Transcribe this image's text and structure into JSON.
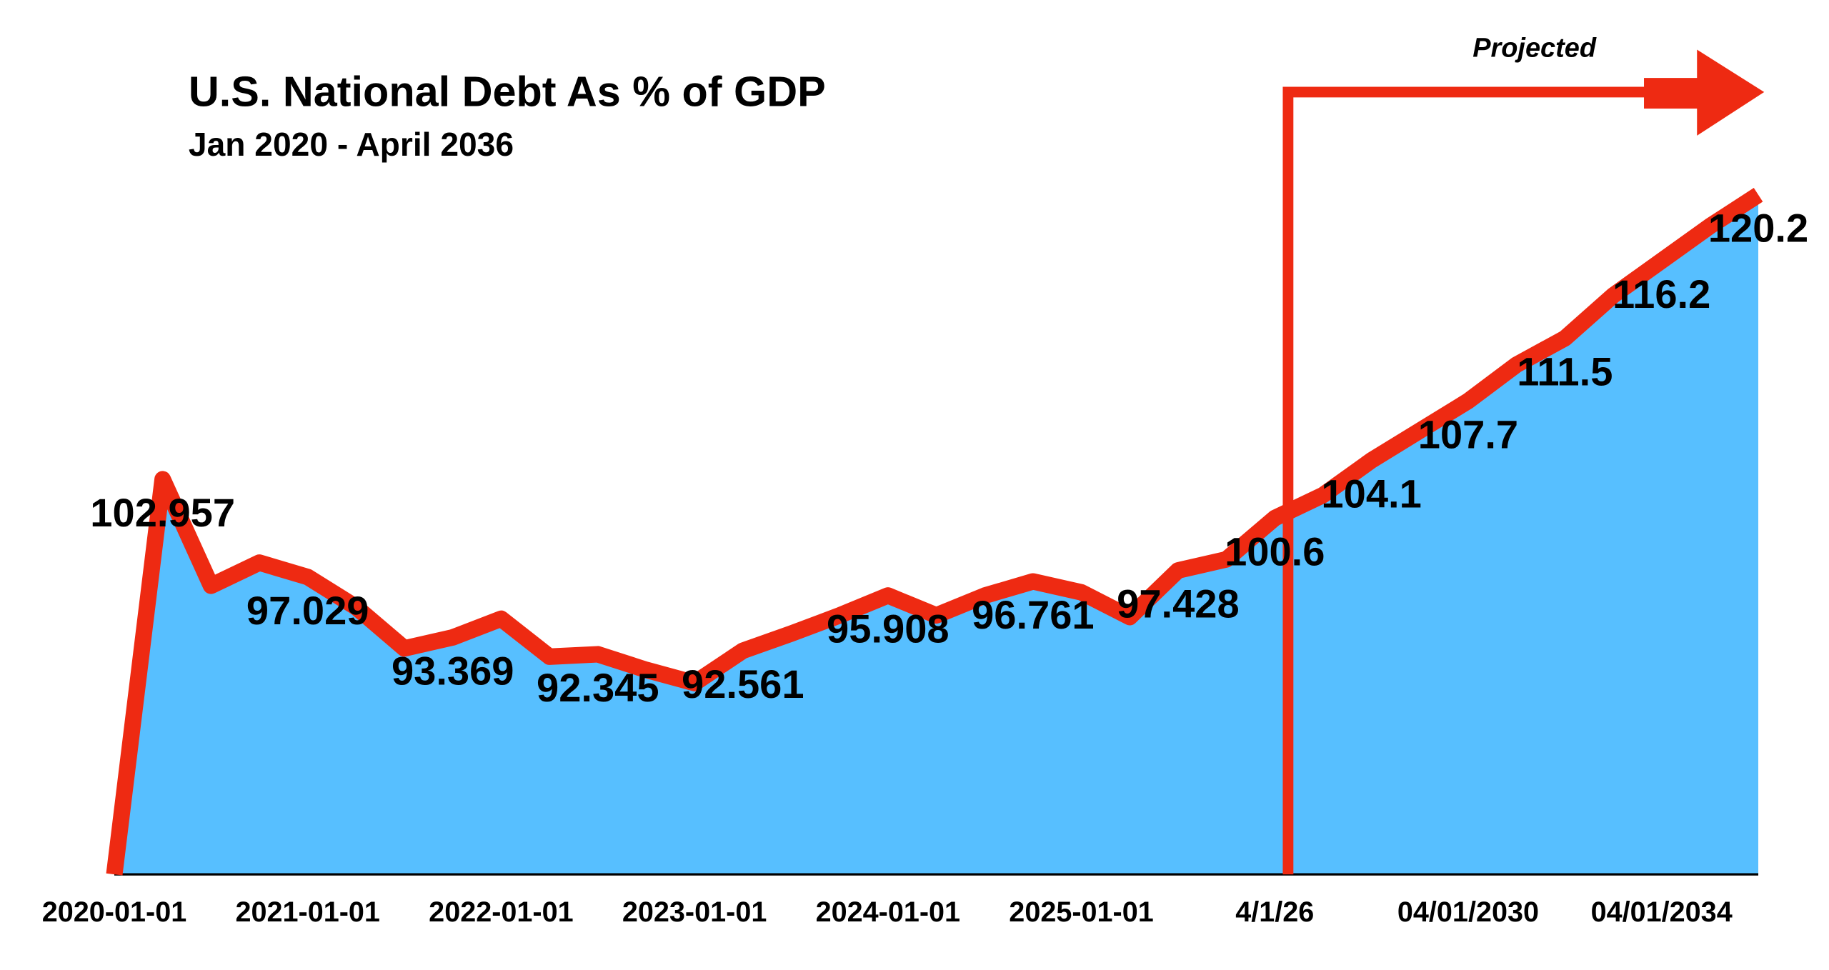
{
  "chart_data": {
    "type": "area",
    "title": "U.S. National Debt As % of GDP",
    "subtitle": "Jan 2020 - April 2036",
    "annotation": "Projected",
    "categories": [
      "2020-01-01",
      null,
      null,
      null,
      "2021-01-01",
      null,
      null,
      null,
      "2022-01-01",
      null,
      null,
      null,
      "2023-01-01",
      null,
      null,
      null,
      "2024-01-01",
      null,
      null,
      null,
      "2025-01-01",
      null,
      null,
      null,
      "4/1/26",
      null,
      null,
      null,
      "04/01/2030",
      null,
      null,
      null,
      "04/01/2034",
      null,
      null
    ],
    "series": [
      {
        "name": "Debt as % of GDP",
        "color": "#ee2a12",
        "fill": "#57bfff",
        "values": [
          79,
          102.957,
          96.5,
          97.9,
          97.029,
          95.2,
          92.7,
          93.369,
          94.5,
          92.2,
          92.345,
          91.4,
          90.6,
          92.561,
          93.6,
          94.7,
          95.908,
          94.7,
          95.9,
          96.761,
          96.1,
          94.6,
          97.428,
          98.1,
          100.6,
          102.0,
          104.1,
          105.9,
          107.7,
          109.9,
          111.5,
          114.1,
          116.2,
          118.3,
          120.2
        ],
        "value_labels": [
          null,
          "102.957",
          null,
          null,
          "97.029",
          null,
          null,
          "93.369",
          null,
          null,
          "92.345",
          null,
          null,
          "92.561",
          null,
          null,
          "95.908",
          null,
          null,
          "96.761",
          null,
          null,
          "97.428",
          null,
          "100.6",
          null,
          "104.1",
          null,
          "107.7",
          null,
          "111.5",
          null,
          "116.2",
          null,
          "120.2"
        ]
      }
    ],
    "ylim": [
      79,
      122
    ]
  }
}
